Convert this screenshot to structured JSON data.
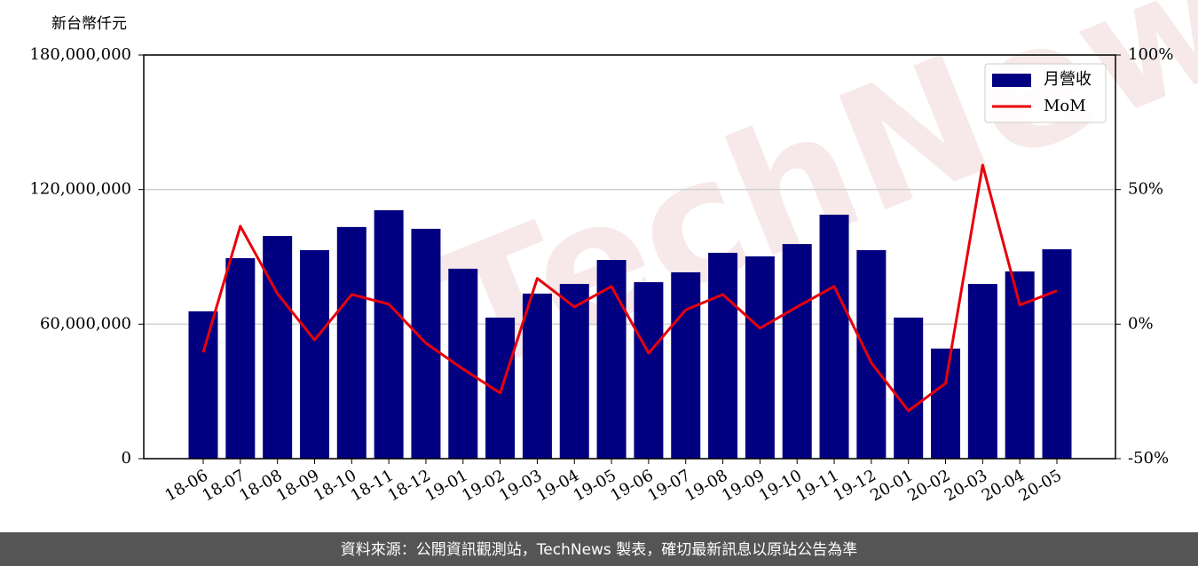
{
  "chart_data": {
    "type": "bar",
    "y_label": "新台幣仟元",
    "watermark": "TechNews",
    "footer": "資料來源：公開資訊觀測站，TechNews 製表，確切最新訊息以原站公告為準",
    "categories": [
      "18-06",
      "18-07",
      "18-08",
      "18-09",
      "18-10",
      "18-11",
      "18-12",
      "19-01",
      "19-02",
      "19-03",
      "19-04",
      "19-05",
      "19-06",
      "19-07",
      "19-08",
      "19-09",
      "19-10",
      "19-11",
      "19-12",
      "20-01",
      "20-02",
      "20-03",
      "20-04",
      "20-05"
    ],
    "series": [
      {
        "name": "月營收",
        "type": "bar",
        "color": "#000080",
        "values": [
          65700000,
          89400000,
          99300000,
          93000000,
          103300000,
          110800000,
          102500000,
          84700000,
          62900000,
          73600000,
          77900000,
          88600000,
          78700000,
          83100000,
          91800000,
          90200000,
          95700000,
          108800000,
          93000000,
          62900000,
          49100000,
          77900000,
          83500000,
          93400000
        ]
      },
      {
        "name": "MoM",
        "type": "line",
        "color": "#e8000b",
        "axis": "y2",
        "values": [
          -10.5,
          36.4,
          11.3,
          -5.9,
          11.0,
          7.4,
          -7.1,
          -16.7,
          -25.6,
          17.0,
          6.4,
          14.0,
          -10.8,
          5.3,
          11.0,
          -1.5,
          6.4,
          14.0,
          -14.4,
          -32.2,
          -22.0,
          59.1,
          7.1,
          12.4
        ]
      }
    ],
    "ylim": [
      0,
      180000000
    ],
    "yticks": [
      0,
      {
        "value": 60000000,
        "label": "60,000,000"
      },
      {
        "value": 120000000,
        "label": "120,000,000"
      },
      {
        "value": 180000000,
        "label": "180,000,000"
      }
    ],
    "y2lim": [
      -50,
      100
    ],
    "y2ticks": [
      {
        "value": -50,
        "label": "-50%"
      },
      {
        "value": 0,
        "label": "0%"
      },
      {
        "value": 50,
        "label": "50%"
      },
      {
        "value": 100,
        "label": "100%"
      }
    ],
    "grid": true,
    "legend": "upper right"
  }
}
